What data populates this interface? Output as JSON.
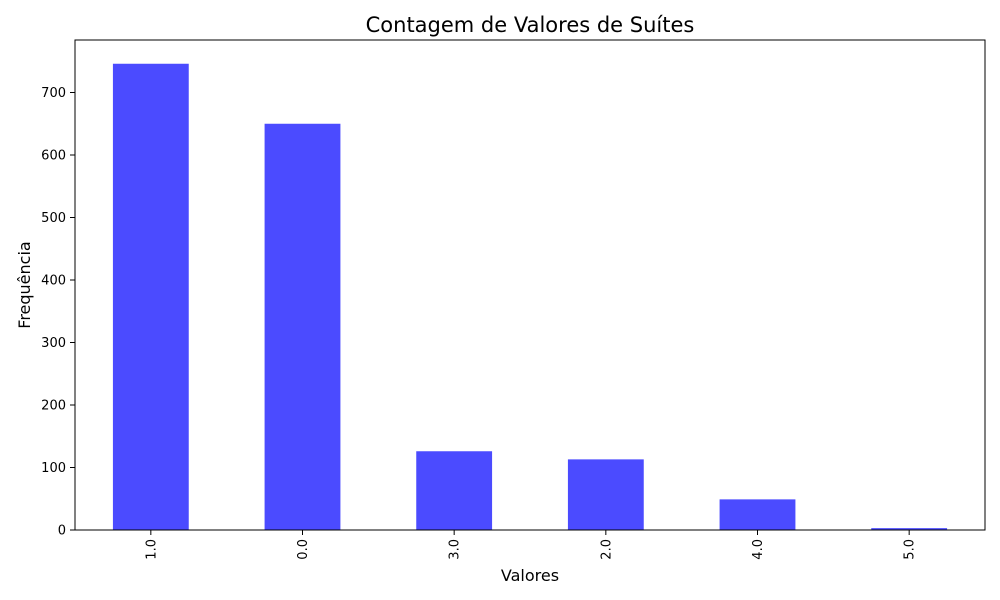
{
  "chart_data": {
    "type": "bar",
    "title": "Contagem de Valores de Suítes",
    "xlabel": "Valores",
    "ylabel": "Frequência",
    "categories": [
      "1.0",
      "0.0",
      "3.0",
      "2.0",
      "4.0",
      "5.0"
    ],
    "values": [
      746,
      650,
      126,
      113,
      49,
      3
    ],
    "ylim": [
      0,
      784
    ],
    "yticks": [
      "0",
      "100",
      "200",
      "300",
      "400",
      "500",
      "600",
      "700"
    ],
    "bar_color": "#4b4bff",
    "grid": false,
    "legend": "none"
  }
}
